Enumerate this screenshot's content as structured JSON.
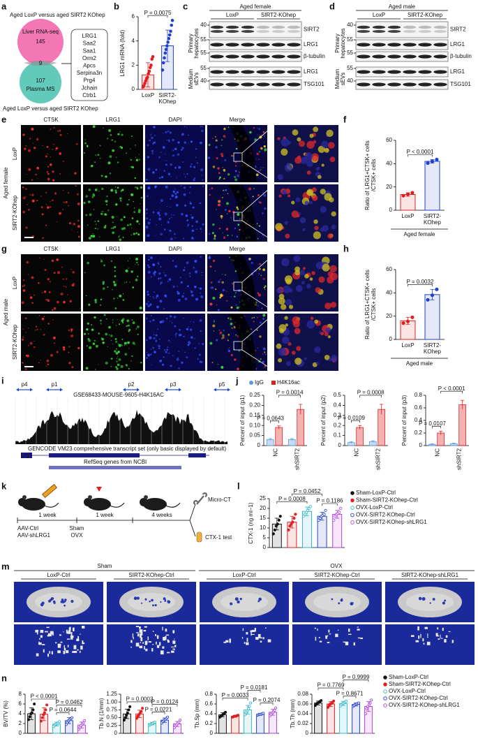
{
  "a": {
    "label": "a",
    "title": "Aged LoxP versus aged SIRT2 KOhep",
    "set1": "Liver RNA-seq",
    "n1": 145,
    "overlap": 9,
    "set2": "Plasma MS",
    "n2": 107,
    "genes": [
      "LRG1",
      "Saa2",
      "Saa1",
      "Orm2",
      "Apcs",
      "Serpina3n",
      "Prg4",
      "Jchain",
      "Ctrb1"
    ],
    "footer": "Aged LoxP versus aged SIRT2 KOhep"
  },
  "b": {
    "label": "b",
    "ylabel": "LRG1 mRNA (fold)",
    "ylim": [
      0,
      6
    ],
    "yticks": [
      0,
      2,
      4,
      6
    ],
    "categories": [
      [
        "LoxP"
      ],
      [
        "SIRT2-",
        "KOhep"
      ]
    ],
    "colors": [
      "#e02020",
      "#2040d0"
    ],
    "values": [
      1.2,
      3.6
    ],
    "err": [
      1.0,
      1.3
    ],
    "points": [
      [
        0.2,
        0.3,
        0.5,
        0.7,
        0.9,
        1.0,
        1.3,
        1.5,
        1.8,
        2.0,
        2.5,
        2.7
      ],
      [
        1.6,
        2.2,
        2.6,
        3.0,
        3.3,
        3.6,
        3.9,
        4.2,
        4.5,
        4.8,
        5.3,
        5.7
      ]
    ],
    "pvalues": [
      "P = 0.0075"
    ]
  },
  "c": {
    "label": "c",
    "title": "Aged female",
    "groups": [
      "LoxP",
      "SIRT2-KOhep"
    ],
    "markers": [
      40,
      55,
      55,
      55,
      40
    ],
    "bands": [
      "SIRT2",
      "LRG1",
      "β-tubulin",
      "LRG1",
      "TSG101"
    ],
    "sections": [
      [
        "Primary",
        "hepatocytes"
      ],
      [
        "Medium",
        "sEVs"
      ]
    ]
  },
  "d": {
    "label": "d",
    "title": "Aged male",
    "groups": [
      "LoxP",
      "SIRT2-KOhep"
    ],
    "markers": [
      40,
      55,
      55,
      55,
      40
    ],
    "bands": [
      "SIRT2",
      "LRG1",
      "β-tubulin",
      "LRG1",
      "TSG101"
    ],
    "sections": [
      [
        "Primary",
        "hepatocytes"
      ],
      [
        "Medium",
        "sEVs"
      ]
    ]
  },
  "e": {
    "label": "e",
    "channels": [
      "CTSK",
      "LRG1",
      "DAPI",
      "Merge"
    ],
    "rows": [
      "LoxP",
      "SIRT2-KOhep"
    ],
    "group": "Aged female"
  },
  "f": {
    "label": "f",
    "ylabel": [
      "Ratio of LRG1+CTSK+ cells",
      "/CTSK+ cells"
    ],
    "ylim": [
      0,
      60
    ],
    "yticks": [
      0,
      20,
      40,
      60
    ],
    "categories": [
      [
        "LoxP"
      ],
      [
        "SIRT2-",
        "KOhep"
      ]
    ],
    "xlabel": "Aged female",
    "colors": [
      "#e02020",
      "#2040d0"
    ],
    "values": [
      13.5,
      42
    ],
    "err": [
      1.5,
      1.5
    ],
    "points": [
      [
        12.5,
        13.8,
        15
      ],
      [
        40.5,
        42,
        43.5
      ]
    ],
    "pvalues": [
      "P < 0.0001"
    ]
  },
  "g": {
    "label": "g",
    "channels": [
      "CTSK",
      "LRG1",
      "DAPI",
      "Merge"
    ],
    "rows": [
      "LoxP",
      "SIRT2-KOhep"
    ],
    "group": "Aged male"
  },
  "h": {
    "label": "h",
    "ylabel": [
      "Ratio of LRG1+CTSK+ cells",
      "/CTSK+ cells"
    ],
    "ylim": [
      0,
      60
    ],
    "yticks": [
      0,
      20,
      40,
      60
    ],
    "categories": [
      [
        "LoxP"
      ],
      [
        "SIRT2-",
        "KOhep"
      ]
    ],
    "xlabel": "Aged male",
    "colors": [
      "#e02020",
      "#2040d0"
    ],
    "values": [
      16,
      38.5
    ],
    "err": [
      3,
      4.5
    ],
    "points": [
      [
        14,
        15.5,
        19
      ],
      [
        34,
        38,
        43
      ]
    ],
    "pvalues": [
      "P = 0.0032"
    ]
  },
  "i": {
    "label": "i",
    "track": "GSE68433-MOUSE-9605-H4K16AC",
    "primers": [
      "p4",
      "p1",
      "p2",
      "p3",
      "p5"
    ],
    "gencode": "GENCODE VM23 comprehensive transcript set (only basic displayed by default)",
    "refseq": "RefSeq genes from NCBI",
    "gene": "Lrg1"
  },
  "j": {
    "label": "j",
    "legend": [
      {
        "name": "IgG",
        "color": "#5a9be0"
      },
      {
        "name": "H4K16ac",
        "color": "#e02020"
      }
    ],
    "categories": [
      "NC",
      "shSIRT2"
    ],
    "charts": [
      {
        "ylabel": "Percent of input (p1)",
        "ylim": [
          0,
          0.25
        ],
        "yticks": [
          0,
          0.05,
          {
            "value": 0.1,
            "label": "0.10"
          },
          0.15,
          {
            "value": 0.2,
            "label": "0.20"
          },
          0.25
        ],
        "series": [
          {
            "values": [
              0.03,
              0.03
            ],
            "err": [
              0.005,
              0.005
            ]
          },
          {
            "values": [
              0.09,
              0.18
            ],
            "err": [
              0.008,
              0.025
            ]
          }
        ],
        "pvalues": [
          "P = 0.0643",
          "P = 0.0014"
        ]
      },
      {
        "ylabel": "Percent of input (p2)",
        "ylim": [
          0,
          0.5
        ],
        "yticks": [
          0,
          0.1,
          0.2,
          0.3,
          0.4,
          0.5
        ],
        "series": [
          {
            "values": [
              0.03,
              0.04
            ],
            "err": [
              0.008,
              0.008
            ]
          },
          {
            "values": [
              0.18,
              0.36
            ],
            "err": [
              0.02,
              0.05
            ]
          }
        ],
        "pvalues": [
          "P = 0.0109",
          "P = 0.0008"
        ]
      },
      {
        "ylabel": "Percent of input (p3)",
        "ylim": [
          0,
          0.8
        ],
        "yticks": [
          0,
          0.2,
          0.4,
          0.6,
          0.8
        ],
        "series": [
          {
            "values": [
              0.02,
              0.03
            ],
            "err": [
              0.008,
              0.008
            ]
          },
          {
            "values": [
              0.2,
              0.65
            ],
            "err": [
              0.03,
              0.07
            ]
          }
        ],
        "pvalues": [
          "P = 0.0107",
          "P < 0.0001"
        ]
      }
    ]
  },
  "k": {
    "label": "k",
    "steps": [
      "1 week",
      "1 week",
      "4 weeks"
    ],
    "treatments": [
      "AAV-Ctrl",
      "AAV-shLRG1"
    ],
    "surgery": [
      "Sham",
      "OVX"
    ],
    "outcomes": [
      "Micro-CT",
      "CTX-1 test"
    ]
  },
  "groups": [
    {
      "name": "Sham-LoxP-Ctrl",
      "color": "#111111"
    },
    {
      "name": "Sham-SIRT2-KOhep-Ctrl",
      "color": "#e02020"
    },
    {
      "name": "OVX-LoxP-Ctrl",
      "color": "#30b8c8"
    },
    {
      "name": "OVX-SIRT2-KOhep-Ctrl",
      "color": "#2040d0"
    },
    {
      "name": "OVX-SIRT2-KOhep-shLRG1",
      "color": "#b040e0"
    }
  ],
  "l": {
    "label": "l",
    "ylabel": "CTX-1 (ng ml−1)",
    "ylim": [
      0,
      25
    ],
    "yticks": [
      0,
      5,
      10,
      15,
      20,
      25
    ],
    "values": [
      12,
      13,
      18.5,
      16,
      17
    ],
    "err": [
      3,
      3,
      2.2,
      2,
      2
    ],
    "points": [
      [
        7,
        9,
        11,
        12,
        14,
        16
      ],
      [
        9,
        11,
        12,
        13,
        15,
        17
      ],
      [
        16,
        17,
        18,
        19,
        20,
        21
      ],
      [
        14,
        15,
        16,
        16.5,
        17,
        19
      ],
      [
        14,
        16,
        17,
        17.5,
        18,
        20
      ]
    ],
    "pvalues": [
      "P = 0.0008",
      "P = 0.0452",
      "P = 0.1186"
    ]
  },
  "m": {
    "label": "m",
    "conditions": [
      "Sham",
      "OVX"
    ],
    "columns": [
      "LoxP-Ctrl",
      "SIRT2-KOhep-Ctrl",
      "LoxP-Ctrl",
      "SIRT2-KOhep-Ctrl",
      "SIRT2-KOhep-shLRG1"
    ]
  },
  "n": {
    "label": "n",
    "charts": [
      {
        "ylabel": "BV/TV (%)",
        "ylim": [
          0,
          8
        ],
        "yticks": [
          0,
          2,
          4,
          6,
          8
        ],
        "values": [
          4,
          3.9,
          1.9,
          2.6,
          1.7
        ],
        "err": [
          1.2,
          1.3,
          0.4,
          0.6,
          0.6
        ],
        "points": [
          [
            2.8,
            3.4,
            4,
            4.2,
            4.8,
            6
          ],
          [
            2.5,
            3.2,
            3.8,
            4.2,
            4.8,
            5.8
          ],
          [
            1.4,
            1.7,
            1.9,
            2,
            2.1,
            2.4
          ],
          [
            1.8,
            2.2,
            2.6,
            2.8,
            3,
            3.2
          ],
          [
            0.8,
            1.2,
            1.6,
            1.9,
            2.1,
            2.6
          ]
        ],
        "pvalues": [
          "P < 0.0001",
          "P = 0.0644",
          "P = 0.0462"
        ]
      },
      {
        "ylabel": "Tb.N (1/mm)",
        "ylim": [
          0,
          1.25
        ],
        "yticks": [
          0,
          0.25,
          {
            "value": 0.5,
            "label": "0.50"
          },
          0.75,
          {
            "value": 1,
            "label": "1.00"
          },
          1.25
        ],
        "values": [
          0.62,
          0.62,
          0.31,
          0.42,
          0.3
        ],
        "err": [
          0.15,
          0.12,
          0.04,
          0.07,
          0.08
        ],
        "points": [
          [
            0.42,
            0.5,
            0.58,
            0.65,
            0.75,
            0.85
          ],
          [
            0.48,
            0.55,
            0.6,
            0.65,
            0.7,
            0.8
          ],
          [
            0.26,
            0.28,
            0.3,
            0.32,
            0.34,
            0.36
          ],
          [
            0.33,
            0.38,
            0.42,
            0.44,
            0.48,
            0.52
          ],
          [
            0.18,
            0.24,
            0.28,
            0.32,
            0.36,
            0.42
          ]
        ],
        "pvalues": [
          "P = 0.0003",
          "P = 0.0221",
          "P = 0.0124"
        ]
      },
      {
        "ylabel": "Tb.Sp (mm)",
        "ylim": [
          0,
          0.8
        ],
        "yticks": [
          0,
          0.2,
          0.4,
          0.6,
          0.8
        ],
        "values": [
          0.38,
          0.35,
          0.48,
          0.39,
          0.43
        ],
        "err": [
          0.04,
          0.02,
          0.09,
          0.02,
          0.06
        ],
        "points": [
          [
            0.33,
            0.35,
            0.37,
            0.39,
            0.41,
            0.43
          ],
          [
            0.33,
            0.34,
            0.35,
            0.35,
            0.36,
            0.37
          ],
          [
            0.38,
            0.42,
            0.46,
            0.5,
            0.55,
            0.62
          ],
          [
            0.37,
            0.38,
            0.39,
            0.39,
            0.4,
            0.41
          ],
          [
            0.36,
            0.39,
            0.42,
            0.44,
            0.47,
            0.52
          ]
        ],
        "pvalues": [
          "P = 0.0033",
          "P = 0.0181",
          "P = 0.2074"
        ]
      },
      {
        "ylabel": "Tb.Th (mm)",
        "ylim": [
          0,
          0.08
        ],
        "yticks": [
          0,
          0.02,
          0.04,
          0.06,
          0.08
        ],
        "values": [
          0.062,
          0.06,
          0.061,
          0.059,
          0.055
        ],
        "err": [
          0.004,
          0.005,
          0.004,
          0.003,
          0.01
        ],
        "points": [
          [
            0.057,
            0.06,
            0.062,
            0.063,
            0.065,
            0.067
          ],
          [
            0.053,
            0.057,
            0.06,
            0.061,
            0.063,
            0.066
          ],
          [
            0.056,
            0.059,
            0.061,
            0.062,
            0.064,
            0.066
          ],
          [
            0.055,
            0.057,
            0.059,
            0.06,
            0.061,
            0.062
          ],
          [
            0.04,
            0.05,
            0.055,
            0.058,
            0.062,
            0.068
          ]
        ],
        "pvalues": [
          "P = 0.7769",
          "P = 0.8671",
          "P = 0.9999"
        ]
      }
    ]
  }
}
